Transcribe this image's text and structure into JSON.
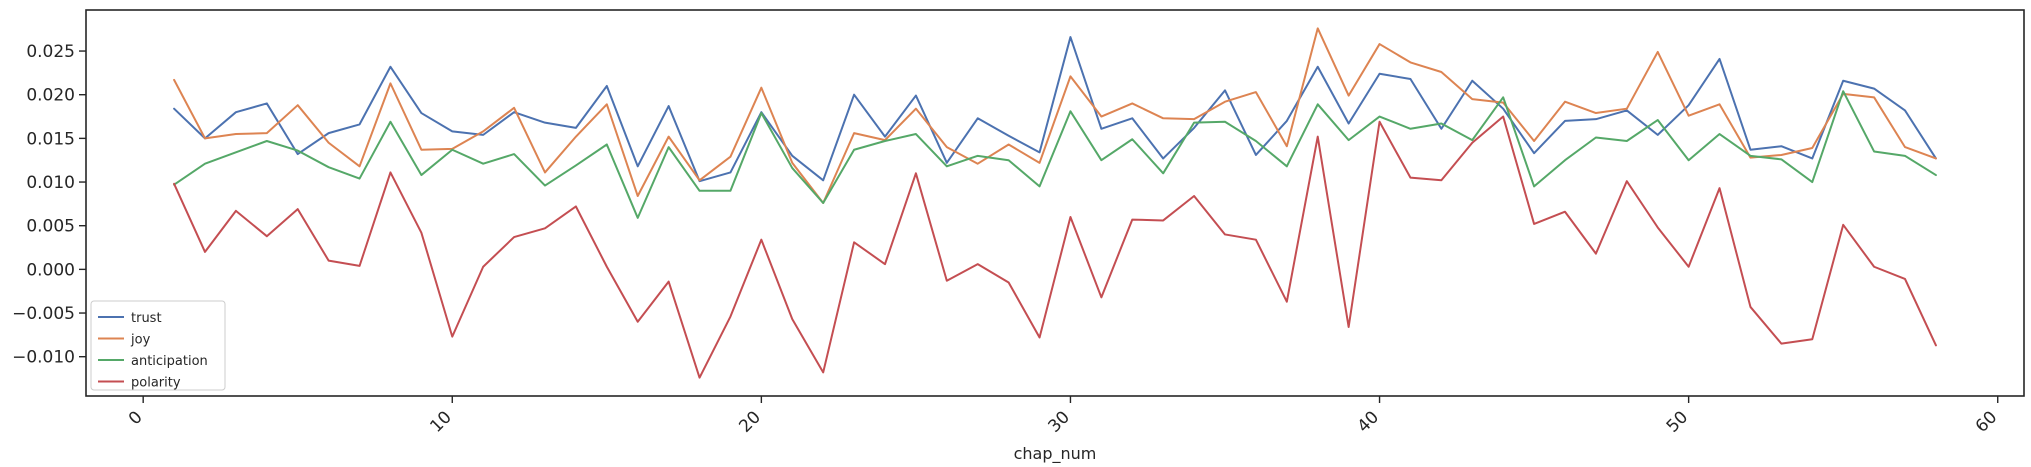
{
  "chart_data": {
    "type": "line",
    "title": "",
    "xlabel": "chap_num",
    "ylabel": "",
    "xlim": [
      -1.85,
      60.85
    ],
    "ylim": [
      -0.0145,
      0.0297
    ],
    "x_ticks": [
      0,
      10,
      20,
      30,
      40,
      50,
      60
    ],
    "x_tick_labels": [
      "0",
      "10",
      "20",
      "30",
      "40",
      "50",
      "60"
    ],
    "y_ticks": [
      -0.01,
      -0.005,
      0.0,
      0.005,
      0.01,
      0.015,
      0.02,
      0.025
    ],
    "y_tick_labels": [
      "−0.010",
      "−0.005",
      "0.000",
      "0.005",
      "0.010",
      "0.015",
      "0.020",
      "0.025"
    ],
    "grid": false,
    "legend_position": "lower-left",
    "x": [
      1,
      2,
      3,
      4,
      5,
      6,
      7,
      8,
      9,
      10,
      11,
      12,
      13,
      14,
      15,
      16,
      17,
      18,
      19,
      20,
      21,
      22,
      23,
      24,
      25,
      26,
      27,
      28,
      29,
      30,
      31,
      32,
      33,
      34,
      35,
      36,
      37,
      38,
      39,
      40,
      41,
      42,
      43,
      44,
      45,
      46,
      47,
      48,
      49,
      50,
      51,
      52,
      53,
      54,
      55,
      56,
      57,
      58
    ],
    "series": [
      {
        "name": "trust",
        "color": "#4c72b0",
        "values": [
          0.0184,
          0.015,
          0.018,
          0.019,
          0.0132,
          0.0156,
          0.0166,
          0.0232,
          0.0179,
          0.0158,
          0.0154,
          0.018,
          0.0168,
          0.0162,
          0.021,
          0.0118,
          0.0187,
          0.0101,
          0.0111,
          0.018,
          0.013,
          0.0102,
          0.02,
          0.0152,
          0.0199,
          0.0122,
          0.0173,
          0.0153,
          0.0134,
          0.0266,
          0.0161,
          0.0173,
          0.0127,
          0.0162,
          0.0205,
          0.0131,
          0.017,
          0.0232,
          0.0167,
          0.0224,
          0.0218,
          0.0161,
          0.0216,
          0.0184,
          0.0133,
          0.017,
          0.0172,
          0.0182,
          0.0154,
          0.0188,
          0.0241,
          0.0137,
          0.0141,
          0.0127,
          0.0216,
          0.0207,
          0.0182,
          0.0127
        ]
      },
      {
        "name": "joy",
        "color": "#dd8452",
        "values": [
          0.0217,
          0.015,
          0.0155,
          0.0156,
          0.0188,
          0.0145,
          0.0118,
          0.0213,
          0.0137,
          0.0138,
          0.0158,
          0.0185,
          0.0111,
          0.0152,
          0.0189,
          0.0084,
          0.0152,
          0.0102,
          0.0129,
          0.0208,
          0.0122,
          0.0076,
          0.0156,
          0.0148,
          0.0184,
          0.014,
          0.0121,
          0.0143,
          0.0122,
          0.0221,
          0.0175,
          0.019,
          0.0173,
          0.0172,
          0.0192,
          0.0203,
          0.0141,
          0.0276,
          0.0199,
          0.0258,
          0.0237,
          0.0226,
          0.0195,
          0.0191,
          0.0147,
          0.0192,
          0.0179,
          0.0184,
          0.0249,
          0.0176,
          0.0189,
          0.0128,
          0.0131,
          0.0139,
          0.0201,
          0.0197,
          0.014,
          0.0127
        ]
      },
      {
        "name": "anticipation",
        "color": "#55a868",
        "values": [
          0.0097,
          0.0121,
          0.0134,
          0.0147,
          0.0136,
          0.0117,
          0.0104,
          0.0169,
          0.0108,
          0.0137,
          0.0121,
          0.0132,
          0.0096,
          0.0119,
          0.0143,
          0.0059,
          0.014,
          0.009,
          0.009,
          0.0179,
          0.0116,
          0.0076,
          0.0137,
          0.0147,
          0.0155,
          0.0118,
          0.013,
          0.0125,
          0.0095,
          0.0181,
          0.0125,
          0.0149,
          0.011,
          0.0168,
          0.0169,
          0.0147,
          0.0118,
          0.0189,
          0.0148,
          0.0175,
          0.0161,
          0.0167,
          0.0148,
          0.0197,
          0.0095,
          0.0125,
          0.0151,
          0.0147,
          0.0171,
          0.0125,
          0.0155,
          0.013,
          0.0126,
          0.01,
          0.0204,
          0.0135,
          0.013,
          0.0108
        ]
      },
      {
        "name": "polarity",
        "color": "#c44e52",
        "values": [
          0.0098,
          0.002,
          0.0067,
          0.0038,
          0.0069,
          0.001,
          0.0004,
          0.0111,
          0.0042,
          -0.0077,
          0.0003,
          0.0037,
          0.0047,
          0.0072,
          0.0003,
          -0.006,
          -0.0014,
          -0.0124,
          -0.0054,
          0.0034,
          -0.0057,
          -0.0118,
          0.0031,
          0.0006,
          0.011,
          -0.0013,
          0.0006,
          -0.0015,
          -0.0078,
          0.006,
          -0.0032,
          0.0057,
          0.0056,
          0.0084,
          0.004,
          0.0034,
          -0.0037,
          0.0152,
          -0.0066,
          0.0169,
          0.0105,
          0.0102,
          0.0145,
          0.0175,
          0.0052,
          0.0066,
          0.0018,
          0.0101,
          0.0048,
          0.0003,
          0.0093,
          -0.0043,
          -0.0085,
          -0.008,
          0.0051,
          0.0003,
          -0.0011,
          -0.0087
        ]
      }
    ]
  }
}
